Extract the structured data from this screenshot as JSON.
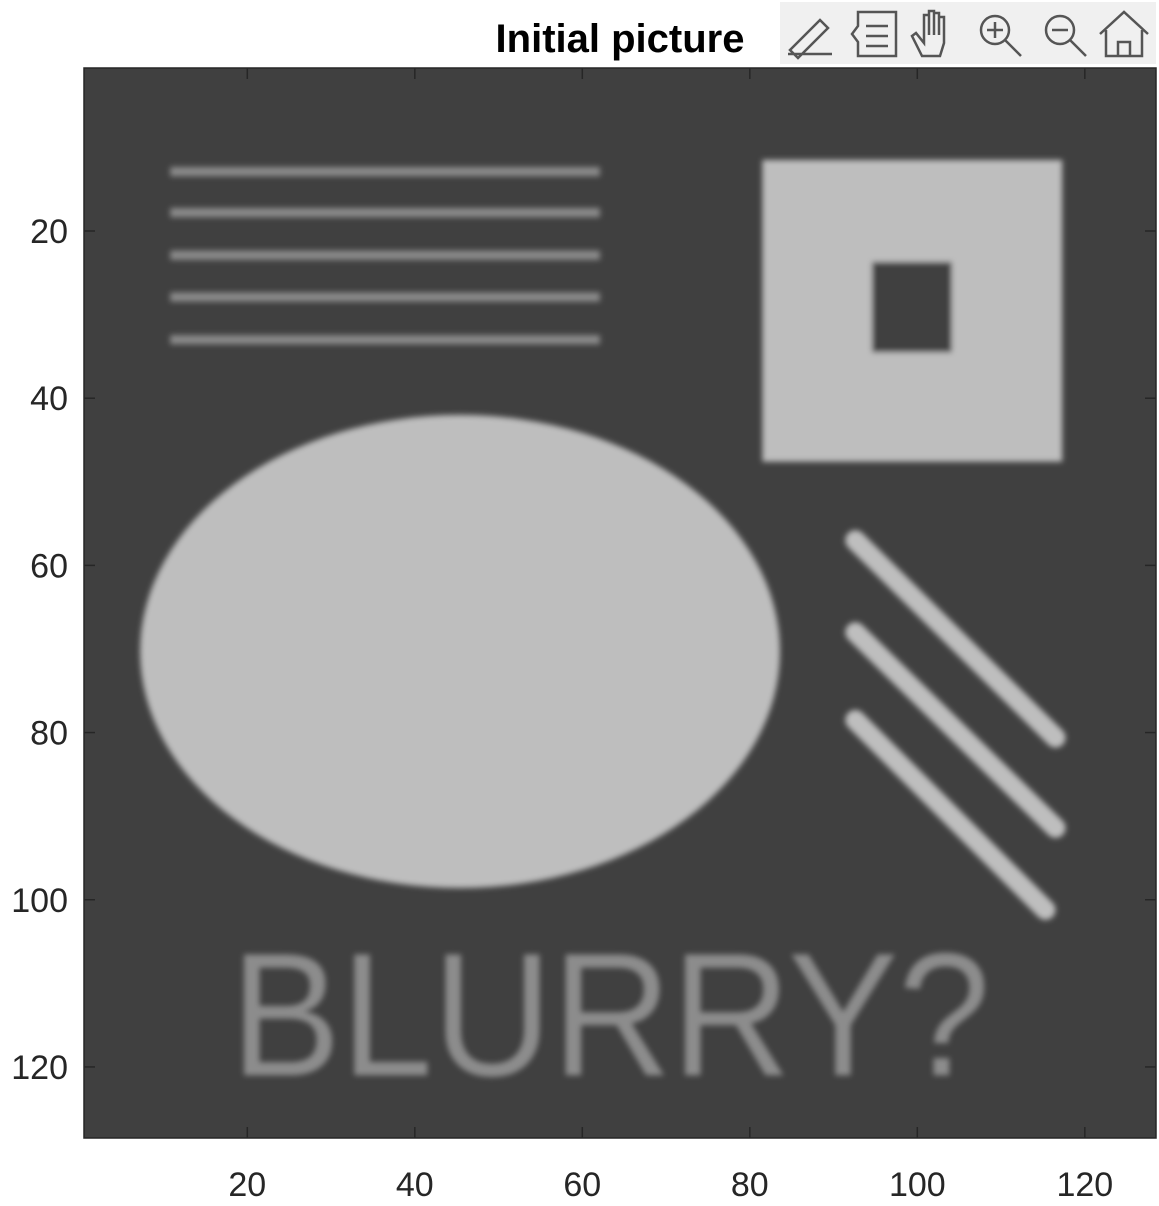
{
  "chart_data": {
    "type": "image",
    "title": "Initial picture",
    "image_text": "BLURRY?",
    "xlim": [
      0.5,
      128.5
    ],
    "ylim": [
      0.5,
      128.5
    ],
    "xticks": [
      20,
      40,
      60,
      80,
      100,
      120
    ],
    "yticks": [
      20,
      40,
      60,
      80,
      100,
      120
    ],
    "y_reversed": true
  }
}
